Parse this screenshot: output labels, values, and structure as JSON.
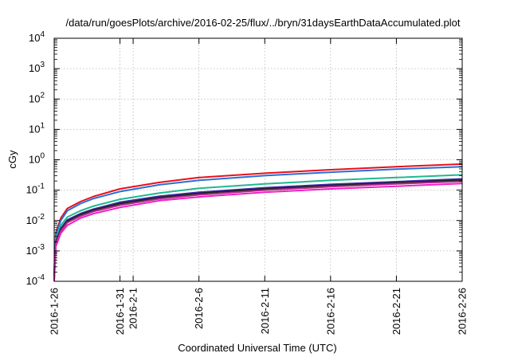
{
  "chart_data": {
    "type": "line",
    "title": "/data/run/goesPlots/archive/2016-02-25/flux/../bryn/31daysEarthDataAccumulated.plot",
    "xlabel": "Coordinated Universal Time (UTC)",
    "ylabel": "cGy",
    "yscale": "log",
    "ylim": [
      0.0001,
      10000
    ],
    "xlim": [
      "2016-01-26",
      "2016-02-26"
    ],
    "grid": true,
    "legend": "none",
    "y_ticks": [
      {
        "value": 0.0001,
        "base": "10",
        "exp": "-4"
      },
      {
        "value": 0.001,
        "base": "10",
        "exp": "-3"
      },
      {
        "value": 0.01,
        "base": "10",
        "exp": "-2"
      },
      {
        "value": 0.1,
        "base": "10",
        "exp": "-1"
      },
      {
        "value": 1,
        "base": "10",
        "exp": "0"
      },
      {
        "value": 10,
        "base": "10",
        "exp": "1"
      },
      {
        "value": 100,
        "base": "10",
        "exp": "2"
      },
      {
        "value": 1000,
        "base": "10",
        "exp": "3"
      },
      {
        "value": 10000,
        "base": "10",
        "exp": "4"
      }
    ],
    "x_ticks": [
      {
        "date": "2016-01-26",
        "label": "2016-1-26"
      },
      {
        "date": "2016-01-31",
        "label": "2016-1-31"
      },
      {
        "date": "2016-02-01",
        "label": "2016-2-1"
      },
      {
        "date": "2016-02-06",
        "label": "2016-2-6"
      },
      {
        "date": "2016-02-11",
        "label": "2016-2-11"
      },
      {
        "date": "2016-02-16",
        "label": "2016-2-16"
      },
      {
        "date": "2016-02-21",
        "label": "2016-2-21"
      },
      {
        "date": "2016-02-26",
        "label": "2016-2-26"
      }
    ],
    "series": [
      {
        "color": "#e8101a",
        "x": [
          "2016-01-26 00:00",
          "2016-01-26 03:00",
          "2016-01-26 12:00",
          "2016-01-27 00:00",
          "2016-01-28 00:00",
          "2016-01-29 00:00",
          "2016-01-31 00:00",
          "2016-02-03 00:00",
          "2016-02-06 00:00",
          "2016-02-11 00:00",
          "2016-02-16 00:00",
          "2016-02-21 00:00",
          "2016-02-26 00:00"
        ],
        "y": [
          0.0002,
          0.004,
          0.012,
          0.025,
          0.042,
          0.062,
          0.11,
          0.18,
          0.26,
          0.36,
          0.47,
          0.59,
          0.72
        ]
      },
      {
        "color": "#2a6fd8",
        "x": [
          "2016-01-26 00:00",
          "2016-01-26 03:00",
          "2016-01-26 12:00",
          "2016-01-27 00:00",
          "2016-01-28 00:00",
          "2016-01-29 00:00",
          "2016-01-31 00:00",
          "2016-02-03 00:00",
          "2016-02-06 00:00",
          "2016-02-11 00:00",
          "2016-02-16 00:00",
          "2016-02-21 00:00",
          "2016-02-26 00:00"
        ],
        "y": [
          0.00018,
          0.0035,
          0.01,
          0.021,
          0.036,
          0.053,
          0.09,
          0.15,
          0.21,
          0.3,
          0.39,
          0.49,
          0.59
        ]
      },
      {
        "color": "#20b890",
        "x": [
          "2016-01-26 00:00",
          "2016-01-26 03:00",
          "2016-01-26 12:00",
          "2016-01-27 00:00",
          "2016-01-28 00:00",
          "2016-01-29 00:00",
          "2016-01-31 00:00",
          "2016-02-03 00:00",
          "2016-02-06 00:00",
          "2016-02-11 00:00",
          "2016-02-16 00:00",
          "2016-02-21 00:00",
          "2016-02-26 00:00"
        ],
        "y": [
          0.00015,
          0.0025,
          0.007,
          0.013,
          0.021,
          0.03,
          0.05,
          0.08,
          0.115,
          0.16,
          0.21,
          0.26,
          0.32
        ]
      },
      {
        "color": "#3a2aa8",
        "x": [
          "2016-01-26 00:00",
          "2016-01-26 03:00",
          "2016-01-26 12:00",
          "2016-01-27 00:00",
          "2016-01-28 00:00",
          "2016-01-29 00:00",
          "2016-01-31 00:00",
          "2016-02-03 00:00",
          "2016-02-06 00:00",
          "2016-02-11 00:00",
          "2016-02-16 00:00",
          "2016-02-21 00:00",
          "2016-02-26 00:00"
        ],
        "y": [
          0.00013,
          0.002,
          0.0055,
          0.0105,
          0.017,
          0.024,
          0.04,
          0.063,
          0.085,
          0.12,
          0.155,
          0.19,
          0.235
        ]
      },
      {
        "color": "#222222",
        "x": [
          "2016-01-26 00:00",
          "2016-01-26 03:00",
          "2016-01-26 12:00",
          "2016-01-27 00:00",
          "2016-01-28 00:00",
          "2016-01-29 00:00",
          "2016-01-31 00:00",
          "2016-02-03 00:00",
          "2016-02-06 00:00",
          "2016-02-11 00:00",
          "2016-02-16 00:00",
          "2016-02-21 00:00",
          "2016-02-26 00:00"
        ],
        "y": [
          0.00012,
          0.0019,
          0.005,
          0.0095,
          0.0155,
          0.022,
          0.036,
          0.057,
          0.078,
          0.11,
          0.142,
          0.175,
          0.215
        ]
      },
      {
        "color": "#b02a8a",
        "x": [
          "2016-01-26 00:00",
          "2016-01-26 03:00",
          "2016-01-26 12:00",
          "2016-01-27 00:00",
          "2016-01-28 00:00",
          "2016-01-29 00:00",
          "2016-01-31 00:00",
          "2016-02-03 00:00",
          "2016-02-06 00:00",
          "2016-02-11 00:00",
          "2016-02-16 00:00",
          "2016-02-21 00:00",
          "2016-02-26 00:00"
        ],
        "y": [
          0.00011,
          0.0017,
          0.0045,
          0.0085,
          0.014,
          0.02,
          0.032,
          0.052,
          0.07,
          0.1,
          0.13,
          0.16,
          0.195
        ]
      },
      {
        "color": "#f020c8",
        "x": [
          "2016-01-26 00:00",
          "2016-01-26 03:00",
          "2016-01-26 12:00",
          "2016-01-27 00:00",
          "2016-01-28 00:00",
          "2016-01-29 00:00",
          "2016-01-31 00:00",
          "2016-02-03 00:00",
          "2016-02-06 00:00",
          "2016-02-11 00:00",
          "2016-02-16 00:00",
          "2016-02-21 00:00",
          "2016-02-26 00:00"
        ],
        "y": [
          0.0001,
          0.0014,
          0.0038,
          0.007,
          0.012,
          0.017,
          0.027,
          0.045,
          0.06,
          0.085,
          0.11,
          0.135,
          0.165
        ]
      }
    ]
  }
}
